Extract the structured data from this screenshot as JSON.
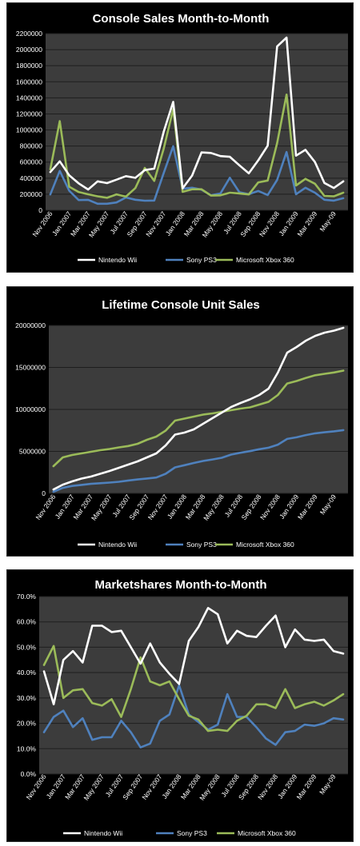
{
  "colors": {
    "panel_bg": "#000000",
    "plot_bg": "#3c3c3c",
    "grid": "#1e1e1e",
    "text": "#ffffff",
    "wii": "#ffffff",
    "ps3": "#4f81bd",
    "xbox": "#9bbb59"
  },
  "chart_data": [
    {
      "type": "line",
      "title": "Console Sales Month-to-Month",
      "xlabel": "",
      "ylabel": "",
      "ylim": [
        0,
        2200000
      ],
      "yticks": [
        "0",
        "200000",
        "400000",
        "600000",
        "800000",
        "1000000",
        "1200000",
        "1400000",
        "1600000",
        "1800000",
        "2000000",
        "2200000"
      ],
      "categories": [
        "Nov 2006",
        "Dec 2006",
        "Jan 2007",
        "Feb 2007",
        "Mar 2007",
        "Apr 2007",
        "May 2007",
        "Jun 2007",
        "Jul 2007",
        "Aug 2007",
        "Sep 2007",
        "Oct 2007",
        "Nov 2007",
        "Dec 2007",
        "Jan 2008",
        "Feb 2008",
        "Mar 2008",
        "Apr 2008",
        "May 2008",
        "Jun 2008",
        "Jul 2008",
        "Aug 2008",
        "Sep 2008",
        "Oct 2008",
        "Nov 2008",
        "Dec 2008",
        "Jan 2009",
        "Feb 2009",
        "Mar 2009",
        "Apr 2009",
        "May 2009",
        "Jun 2009"
      ],
      "xtick_labels": [
        "Nov 2006",
        "Jan 2007",
        "Mar 2007",
        "May 2007",
        "Jul 2007",
        "Sep 2007",
        "Nov 2007",
        "Jan 2008",
        "Mar 2008",
        "May 2008",
        "Jul 2008",
        "Sep 2008",
        "Nov 2008",
        "Jan 2009",
        "Mar 2009",
        "May-09"
      ],
      "legend_position": "bottom",
      "grid": true,
      "series": [
        {
          "name": "Nintendo Wii",
          "color": "#ffffff",
          "values": [
            476000,
            610000,
            436000,
            335000,
            259000,
            360000,
            338000,
            381000,
            425000,
            404000,
            501000,
            519000,
            981000,
            1350000,
            274000,
            432000,
            721000,
            714000,
            675000,
            666000,
            560000,
            460000,
            622000,
            804000,
            2040000,
            2150000,
            680000,
            753000,
            600000,
            340000,
            278000,
            360000
          ]
        },
        {
          "name": "Sony PS3",
          "color": "#4f81bd",
          "values": [
            197000,
            491000,
            244000,
            127000,
            130000,
            82000,
            82000,
            98000,
            159000,
            131000,
            119000,
            121000,
            466000,
            798000,
            269000,
            281000,
            257000,
            187000,
            209000,
            405000,
            225000,
            200000,
            241000,
            190000,
            378000,
            726000,
            200000,
            281000,
            219000,
            131000,
            120000,
            150000
          ]
        },
        {
          "name": "Microsoft Xbox 360",
          "color": "#9bbb59",
          "values": [
            511000,
            1110000,
            294000,
            228000,
            199000,
            174000,
            155000,
            198000,
            170000,
            277000,
            528000,
            366000,
            770000,
            1260000,
            230000,
            262000,
            262000,
            183000,
            186000,
            219000,
            210000,
            197000,
            347000,
            370000,
            836000,
            1440000,
            309000,
            391000,
            330000,
            179000,
            174000,
            219000
          ]
        }
      ]
    },
    {
      "type": "line",
      "title": "Lifetime Console Unit Sales",
      "xlabel": "",
      "ylabel": "",
      "ylim": [
        0,
        21000000
      ],
      "yticks": [
        "0",
        "5000000",
        "10000000",
        "15000000",
        "20000000"
      ],
      "categories": [
        "Nov 2006",
        "Dec 2006",
        "Jan 2007",
        "Feb 2007",
        "Mar 2007",
        "Apr 2007",
        "May 2007",
        "Jun 2007",
        "Jul 2007",
        "Aug 2007",
        "Sep 2007",
        "Oct 2007",
        "Nov 2007",
        "Dec 2007",
        "Jan 2008",
        "Feb 2008",
        "Mar 2008",
        "Apr 2008",
        "May 2008",
        "Jun 2008",
        "Jul 2008",
        "Aug 2008",
        "Sep 2008",
        "Oct 2008",
        "Nov 2008",
        "Dec 2008",
        "Jan 2009",
        "Feb 2009",
        "Mar 2009",
        "Apr 2009",
        "May 2009",
        "Jun 2009"
      ],
      "xtick_labels": [
        "Nov 2006",
        "Jan 2007",
        "Mar 2007",
        "May 2007",
        "Jul 2007",
        "Sep 2007",
        "Nov 2007",
        "Jan 2008",
        "Mar 2008",
        "May 2008",
        "Jul 2008",
        "Sep 2008",
        "Nov 2008",
        "Jan 2009",
        "Mar 2009",
        "May-09"
      ],
      "legend_position": "bottom",
      "grid": true,
      "series": [
        {
          "name": "Nintendo Wii",
          "color": "#ffffff",
          "values": [
            476000,
            1090000,
            1500000,
            1850000,
            2100000,
            2450000,
            2800000,
            3200000,
            3600000,
            4000000,
            4500000,
            5000000,
            6000000,
            7350000,
            7600000,
            8000000,
            8700000,
            9400000,
            10100000,
            10800000,
            11300000,
            11750000,
            12300000,
            13100000,
            15100000,
            17600000,
            18300000,
            19100000,
            19700000,
            20100000,
            20350000,
            20700000
          ]
        },
        {
          "name": "Sony PS3",
          "color": "#4f81bd",
          "values": [
            197000,
            690000,
            930000,
            1060000,
            1190000,
            1270000,
            1350000,
            1450000,
            1610000,
            1740000,
            1860000,
            1980000,
            2450000,
            3250000,
            3520000,
            3800000,
            4050000,
            4240000,
            4450000,
            4850000,
            5080000,
            5280000,
            5520000,
            5710000,
            6090000,
            6810000,
            7010000,
            7290000,
            7510000,
            7640000,
            7760000,
            7910000
          ]
        },
        {
          "name": "Microsoft Xbox 360",
          "color": "#9bbb59",
          "values": [
            3400000,
            4500000,
            4800000,
            5000000,
            5200000,
            5400000,
            5550000,
            5750000,
            5920000,
            6200000,
            6700000,
            7100000,
            7850000,
            9100000,
            9350000,
            9600000,
            9850000,
            10000000,
            10200000,
            10400000,
            10600000,
            10750000,
            11100000,
            11450000,
            12300000,
            13740000,
            14050000,
            14440000,
            14770000,
            14950000,
            15120000,
            15350000
          ]
        }
      ]
    },
    {
      "type": "line",
      "title": "Marketshares Month-to-Month",
      "xlabel": "",
      "ylabel": "",
      "ylim": [
        0,
        70
      ],
      "yticks": [
        "0.0%",
        "10.0%",
        "20.0%",
        "30.0%",
        "40.0%",
        "50.0%",
        "60.0%",
        "70.0%"
      ],
      "categories": [
        "Nov 2006",
        "Dec 2006",
        "Jan 2007",
        "Feb 2007",
        "Mar 2007",
        "Apr 2007",
        "May 2007",
        "Jun 2007",
        "Jul 2007",
        "Aug 2007",
        "Sep 2007",
        "Oct 2007",
        "Nov 2007",
        "Dec 2007",
        "Jan 2008",
        "Feb 2008",
        "Mar 2008",
        "Apr 2008",
        "May 2008",
        "Jun 2008",
        "Jul 2008",
        "Aug 2008",
        "Sep 2008",
        "Oct 2008",
        "Nov 2008",
        "Dec 2008",
        "Jan 2009",
        "Feb 2009",
        "Mar 2009",
        "Apr 2009",
        "May 2009",
        "Jun 2009"
      ],
      "xtick_labels": [
        "Nov 2006",
        "Jan 2007",
        "Mar 2007",
        "May 2007",
        "Jul 2007",
        "Sep 2007",
        "Nov 2007",
        "Jan 2008",
        "Mar 2008",
        "May 2008",
        "Jul 2008",
        "Sep 2008",
        "Nov 2008",
        "Jan 2009",
        "Mar 2009",
        "May-09"
      ],
      "legend_position": "bottom",
      "grid": true,
      "series": [
        {
          "name": "Nintendo Wii",
          "color": "#ffffff",
          "values": [
            40.5,
            27.5,
            45.0,
            48.5,
            44.0,
            58.5,
            58.5,
            56.0,
            56.5,
            50.0,
            43.5,
            51.5,
            44.0,
            39.5,
            35.5,
            52.5,
            58.0,
            65.5,
            63.0,
            51.5,
            56.5,
            54.5,
            54.0,
            58.5,
            62.5,
            50.0,
            57.0,
            53.0,
            52.5,
            53.0,
            48.5,
            47.5
          ]
        },
        {
          "name": "Sony PS3",
          "color": "#4f81bd",
          "values": [
            16.5,
            22.5,
            25.0,
            18.5,
            22.0,
            13.5,
            14.5,
            14.5,
            21.0,
            16.5,
            10.5,
            12.0,
            21.0,
            23.5,
            35.0,
            23.5,
            20.5,
            17.5,
            19.5,
            31.5,
            22.5,
            22.5,
            18.5,
            14.0,
            11.5,
            16.5,
            17.0,
            19.5,
            19.0,
            20.0,
            22.0,
            21.5
          ]
        },
        {
          "name": "Microsoft Xbox 360",
          "color": "#9bbb59",
          "values": [
            43.0,
            50.5,
            30.0,
            33.0,
            33.5,
            28.0,
            27.0,
            29.5,
            22.5,
            33.5,
            46.0,
            36.5,
            35.0,
            36.5,
            29.5,
            23.0,
            21.5,
            17.0,
            17.5,
            17.0,
            21.0,
            23.0,
            27.5,
            27.5,
            26.0,
            33.5,
            26.0,
            27.5,
            28.5,
            27.0,
            29.0,
            31.5
          ]
        }
      ]
    }
  ]
}
